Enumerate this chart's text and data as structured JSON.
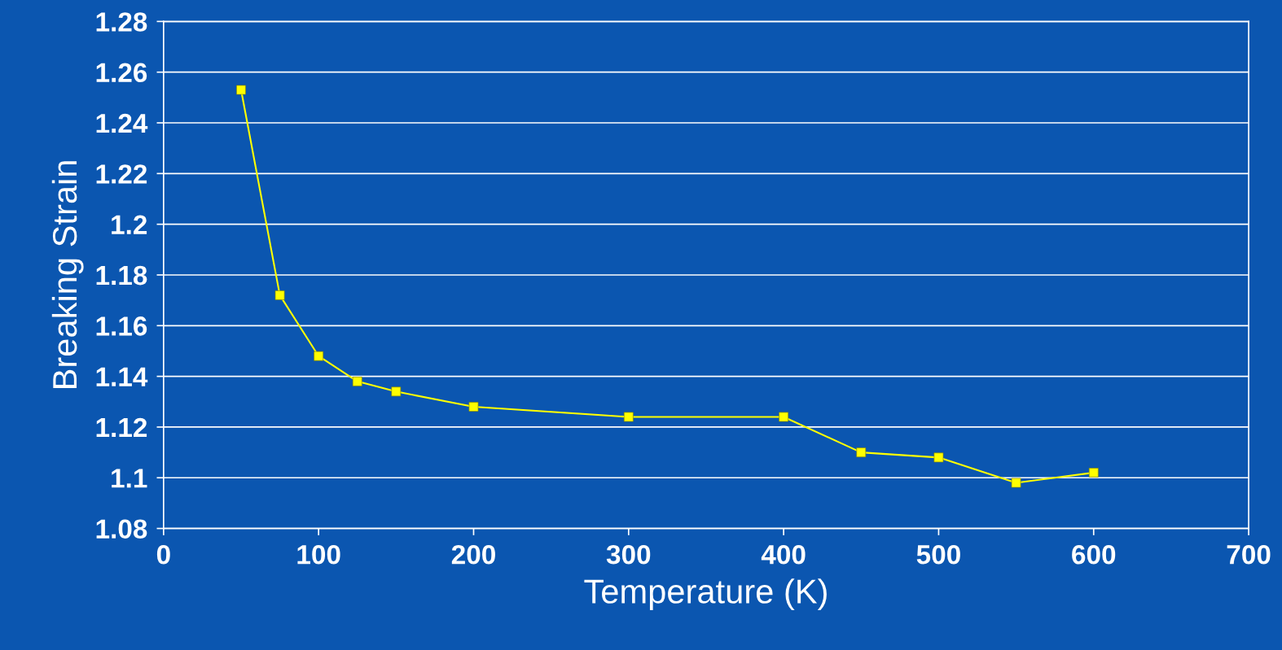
{
  "chart_data": {
    "type": "line",
    "xlabel": "Temperature (K)",
    "ylabel": "Breaking Strain",
    "x": [
      50,
      75,
      100,
      125,
      150,
      200,
      300,
      400,
      450,
      500,
      550,
      600
    ],
    "series": [
      {
        "color": "#ffff00",
        "values": [
          1.253,
          1.172,
          1.148,
          1.138,
          1.134,
          1.128,
          1.124,
          1.124,
          1.11,
          1.108,
          1.098,
          1.102
        ]
      }
    ],
    "xlim": [
      0,
      700
    ],
    "xticks": [
      0,
      100,
      200,
      300,
      400,
      500,
      600,
      700
    ],
    "ylim": [
      1.08,
      1.28
    ],
    "yticks": [
      {
        "value": 1.08,
        "label": "1.08"
      },
      {
        "value": 1.1,
        "label": "1.1"
      },
      {
        "value": 1.12,
        "label": "1.12"
      },
      {
        "value": 1.14,
        "label": "1.14"
      },
      {
        "value": 1.16,
        "label": "1.16"
      },
      {
        "value": 1.18,
        "label": "1.18"
      },
      {
        "value": 1.2,
        "label": "1.2"
      },
      {
        "value": 1.22,
        "label": "1.22"
      },
      {
        "value": 1.24,
        "label": "1.24"
      },
      {
        "value": 1.26,
        "label": "1.26"
      },
      {
        "value": 1.28,
        "label": "1.28"
      }
    ],
    "grid": "y",
    "marker": "square",
    "line_style": "solid",
    "legend": false
  }
}
